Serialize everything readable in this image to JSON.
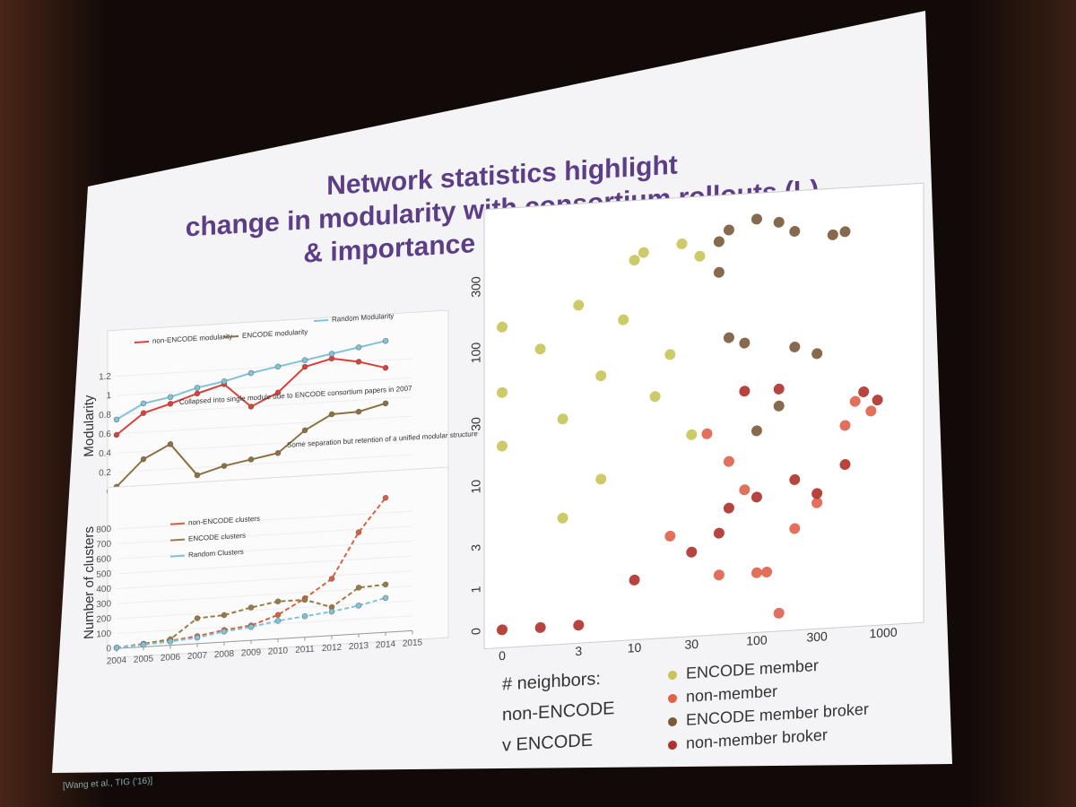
{
  "slide": {
    "title_lines": [
      "Network statistics highlight",
      "change in modularity with consortium rollouts (L)",
      "& importance of broker role (R)"
    ],
    "citation": "[Wang et al., TIG ('16)]"
  },
  "chart_data": [
    {
      "type": "line",
      "ylabel": "Modularity",
      "x": [
        2004,
        2005,
        2006,
        2007,
        2008,
        2009,
        2010,
        2011,
        2012,
        2013,
        2014
      ],
      "xlim": [
        2004,
        2015
      ],
      "ylim": [
        0,
        1.4
      ],
      "yticks": [
        0,
        0.2,
        0.4,
        0.6,
        0.8,
        1,
        1.2
      ],
      "linestyle": "solid",
      "annotations": [
        "Collapsed into single module due to ENCODE consortium papers in 2007",
        "Some separation but retention of a unified modular structure"
      ],
      "series": [
        {
          "name": "non-ENCODE modularity",
          "color": "#d9403a",
          "values": [
            0.59,
            0.8,
            0.88,
            0.97,
            1.05,
            0.8,
            0.93,
            1.18,
            1.25,
            1.2,
            1.12
          ]
        },
        {
          "name": "ENCODE modularity",
          "color": "#8b7040",
          "values": [
            0.05,
            0.32,
            0.46,
            0.12,
            0.2,
            0.25,
            0.3,
            0.52,
            0.67,
            0.68,
            0.75
          ]
        },
        {
          "name": "Random Modularity",
          "color": "#7fc4d6",
          "values": [
            0.75,
            0.9,
            0.95,
            1.03,
            1.08,
            1.15,
            1.2,
            1.25,
            1.3,
            1.35,
            1.4
          ]
        }
      ]
    },
    {
      "type": "line",
      "ylabel": "Number of clusters",
      "x": [
        2004,
        2005,
        2006,
        2007,
        2008,
        2009,
        2010,
        2011,
        2012,
        2013,
        2014
      ],
      "xlim": [
        2004,
        2015
      ],
      "xticks": [
        2004,
        2005,
        2006,
        2007,
        2008,
        2009,
        2010,
        2011,
        2012,
        2013,
        2014,
        2015
      ],
      "ylim": [
        0,
        900
      ],
      "yticks": [
        0,
        100,
        200,
        300,
        400,
        500,
        600,
        700,
        800
      ],
      "linestyle": "dashed",
      "series": [
        {
          "name": "non-ENCODE clusters",
          "color": "#d9603a",
          "values": [
            5,
            20,
            30,
            50,
            80,
            100,
            160,
            260,
            380,
            680,
            900
          ]
        },
        {
          "name": "ENCODE clusters",
          "color": "#9a7a40",
          "values": [
            5,
            20,
            40,
            170,
            180,
            220,
            250,
            250,
            190,
            310,
            320
          ]
        },
        {
          "name": "Random Clusters",
          "color": "#7fc4d6",
          "values": [
            5,
            15,
            25,
            40,
            70,
            90,
            120,
            140,
            160,
            190,
            230
          ]
        }
      ]
    },
    {
      "type": "scatter",
      "scale": "log1p",
      "xlabel_lines": [
        "# neighbors:",
        "non-ENCODE",
        "v ENCODE"
      ],
      "xlim": [
        0,
        1500
      ],
      "ylim": [
        0,
        800
      ],
      "xticks": [
        0,
        3,
        10,
        30,
        100,
        300,
        1000
      ],
      "yticks": [
        0,
        1,
        3,
        10,
        30,
        100,
        300
      ],
      "series": [
        {
          "name": "ENCODE member",
          "color": "#c8c45a",
          "x": [
            0,
            0,
            0,
            1,
            2,
            3,
            5,
            8,
            10,
            12,
            15,
            20,
            25,
            30,
            35,
            5,
            2
          ],
          "values": [
            150,
            50,
            20,
            100,
            30,
            200,
            60,
            150,
            400,
            450,
            40,
            80,
            500,
            20,
            400,
            10,
            5
          ]
        },
        {
          "name": "non-member",
          "color": "#e0604a",
          "x": [
            40,
            60,
            80,
            100,
            120,
            200,
            300,
            500,
            600,
            800,
            20,
            50,
            150
          ],
          "values": [
            20,
            12,
            7,
            1,
            1,
            3,
            5,
            20,
            30,
            25,
            3,
            1,
            0
          ]
        },
        {
          "name": "ENCODE member broker",
          "color": "#7a5a3a",
          "x": [
            50,
            60,
            100,
            150,
            200,
            400,
            500,
            50,
            60,
            80,
            200,
            300,
            100,
            150
          ],
          "values": [
            500,
            600,
            700,
            650,
            550,
            500,
            520,
            300,
            100,
            90,
            80,
            70,
            20,
            30
          ]
        },
        {
          "name": "non-member broker",
          "color": "#b0302a",
          "x": [
            0,
            1,
            3,
            10,
            30,
            60,
            100,
            200,
            300,
            500,
            50,
            80,
            150,
            700,
            900
          ],
          "values": [
            0,
            0,
            0,
            1,
            2,
            5,
            6,
            8,
            6,
            10,
            3,
            40,
            40,
            35,
            30
          ]
        }
      ]
    }
  ]
}
